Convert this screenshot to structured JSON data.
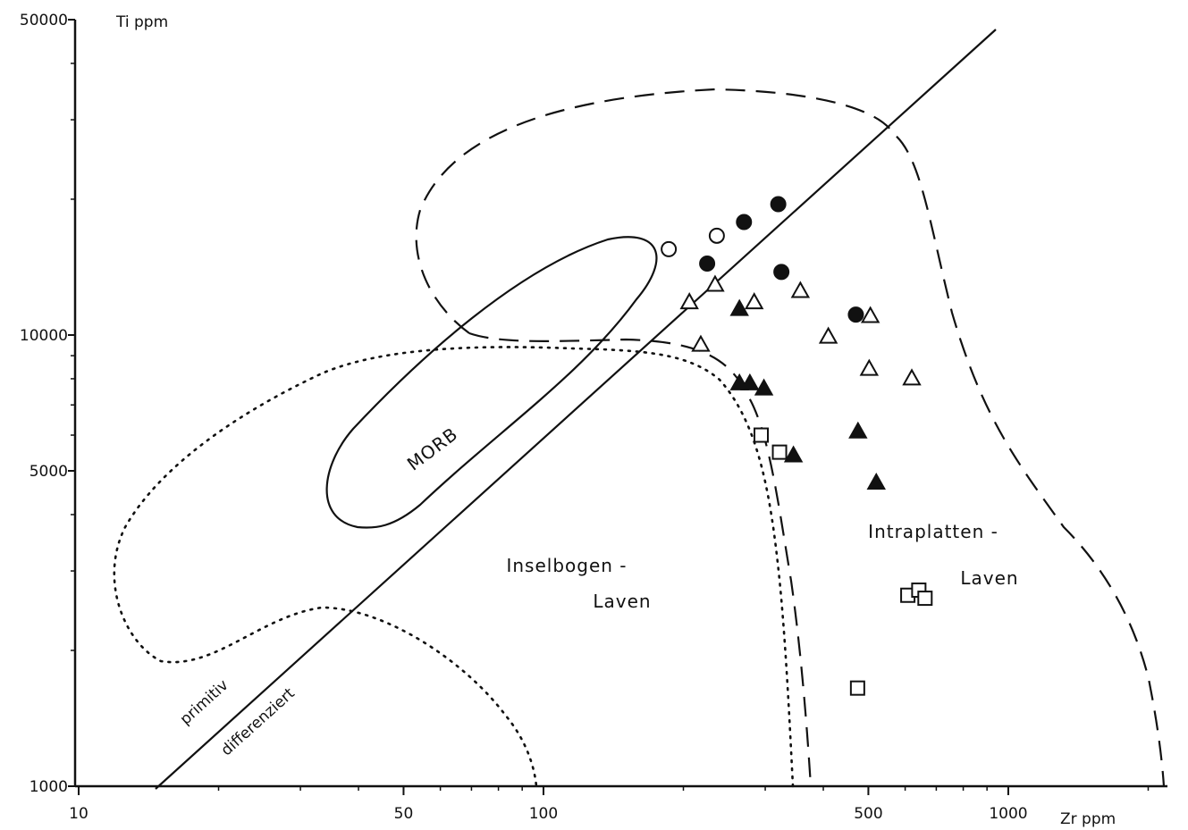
{
  "chart_data": {
    "type": "scatter",
    "title": "",
    "xlabel": "Zr ppm",
    "ylabel": "Ti ppm",
    "x_scale": "log",
    "y_scale": "log",
    "xlim": [
      10,
      2200
    ],
    "ylim": [
      1000,
      50000
    ],
    "x_ticks": [
      10,
      50,
      100,
      500,
      1000
    ],
    "y_ticks": [
      1000,
      5000,
      10000,
      50000
    ],
    "x_tick_labels": [
      "10",
      "50",
      "100",
      "500",
      "1000"
    ],
    "y_tick_labels": [
      "1000",
      "5000",
      "10000",
      "50000"
    ],
    "grid": false,
    "field_labels": {
      "morb": "MORB",
      "island_arc_1": "Inselbogen -",
      "island_arc_2": "Laven",
      "within_plate_1": "Intraplatten -",
      "within_plate_2": "Laven",
      "primitive": "primitiv",
      "differentiated": "differenziert"
    },
    "series": [
      {
        "marker": "filled-circle",
        "points": [
          [
            225,
            14400
          ],
          [
            270,
            17800
          ],
          [
            320,
            19500
          ],
          [
            325,
            13800
          ],
          [
            470,
            11100
          ]
        ]
      },
      {
        "marker": "open-circle",
        "points": [
          [
            186,
            15500
          ],
          [
            236,
            16600
          ]
        ]
      },
      {
        "marker": "open-triangle",
        "points": [
          [
            206,
            11800
          ],
          [
            234,
            12900
          ],
          [
            284,
            11800
          ],
          [
            357,
            12500
          ],
          [
            410,
            9900
          ],
          [
            505,
            11000
          ],
          [
            502,
            8400
          ],
          [
            620,
            8000
          ],
          [
            218,
            9500
          ]
        ]
      },
      {
        "marker": "filled-triangle",
        "points": [
          [
            264,
            11400
          ],
          [
            264,
            7800
          ],
          [
            278,
            7800
          ],
          [
            298,
            7600
          ],
          [
            345,
            5400
          ],
          [
            475,
            6100
          ],
          [
            520,
            4700
          ]
        ]
      },
      {
        "marker": "open-square",
        "points": [
          [
            294,
            6000
          ],
          [
            322,
            5500
          ],
          [
            608,
            2650
          ],
          [
            642,
            2720
          ],
          [
            662,
            2610
          ],
          [
            474,
            1650
          ]
        ]
      }
    ]
  }
}
